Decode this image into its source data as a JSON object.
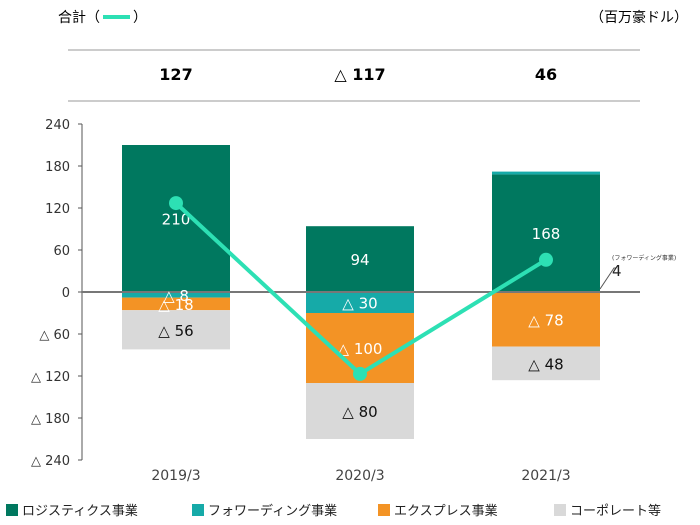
{
  "header": {
    "total_label": "合計（",
    "total_label_close": "）",
    "unit": "（百万豪ドル）",
    "totals": [
      "127",
      "△ 117",
      "46"
    ]
  },
  "chart_data": {
    "type": "bar",
    "stacked": true,
    "categories": [
      "2019/3",
      "2020/3",
      "2021/3"
    ],
    "ylim": [
      -240,
      240
    ],
    "yticks": [
      240,
      180,
      120,
      60,
      0,
      -60,
      -120,
      -180,
      -240
    ],
    "ytick_labels": [
      "240",
      "180",
      "120",
      "60",
      "0",
      "△ 60",
      "△ 120",
      "△ 180",
      "△ 240"
    ],
    "series": [
      {
        "name": "ロジスティクス事業",
        "color": "#00785f",
        "values": [
          210,
          94,
          168
        ],
        "labels": [
          "210",
          "94",
          "168"
        ]
      },
      {
        "name": "フォワーディング事業",
        "color": "#16aaa8",
        "values": [
          -8,
          -30,
          4
        ],
        "labels": [
          "△ 8",
          "△ 30",
          "4"
        ]
      },
      {
        "name": "エクスプレス事業",
        "color": "#f39325",
        "values": [
          -18,
          -100,
          -78
        ],
        "labels": [
          "△ 18",
          "△ 100",
          "△ 78"
        ]
      },
      {
        "name": "コーポレート等",
        "color": "#d9d9d9",
        "values": [
          -56,
          -80,
          -48
        ],
        "labels": [
          "△ 56",
          "△ 80",
          "△ 48"
        ]
      }
    ],
    "line": {
      "name": "合計",
      "color": "#2de0b4",
      "values": [
        127,
        -117,
        46
      ]
    },
    "callout": {
      "text": "(フォワーディング事業)",
      "value": "4"
    }
  }
}
